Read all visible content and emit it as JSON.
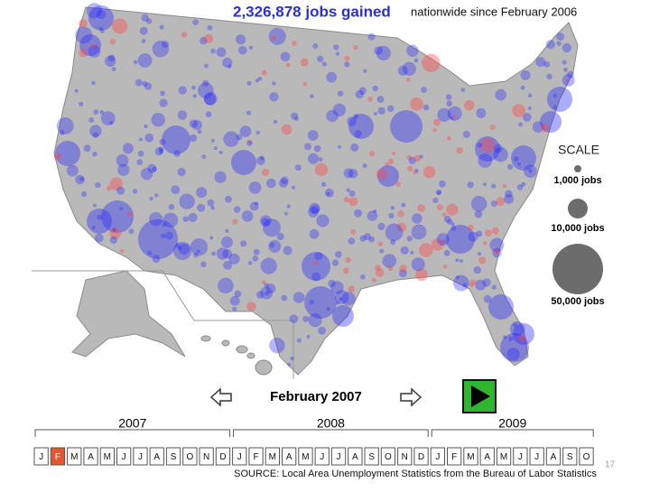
{
  "header": {
    "headline": "2,326,878 jobs gained",
    "subtitle": "nationwide since February 2006"
  },
  "scale": {
    "title": "SCALE",
    "items": [
      "1,000 jobs",
      "10,000 jobs",
      "50,000 jobs"
    ]
  },
  "timeline": {
    "current": "February 2007",
    "years": [
      {
        "label": "2007",
        "months": [
          "J",
          "F",
          "M",
          "A",
          "M",
          "J",
          "J",
          "A",
          "S",
          "O",
          "N",
          "D"
        ]
      },
      {
        "label": "2008",
        "months": [
          "J",
          "F",
          "M",
          "A",
          "M",
          "J",
          "J",
          "A",
          "S",
          "O",
          "N",
          "D"
        ]
      },
      {
        "label": "2009",
        "months": [
          "J",
          "F",
          "M",
          "A",
          "M",
          "J",
          "J",
          "A",
          "S",
          "O"
        ]
      }
    ],
    "selected": {
      "year": 0,
      "month": 1
    }
  },
  "source": "SOURCE: Local Area Unemployment Statistics from the Bureau of Labor Statistics",
  "page_number": "17"
}
